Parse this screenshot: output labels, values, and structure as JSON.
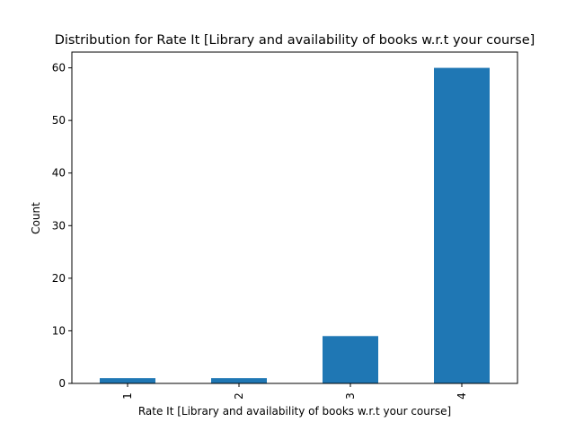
{
  "chart_data": {
    "type": "bar",
    "title": "Distribution for Rate It [Library and availability of books  w.r.t your course]",
    "xlabel": "Rate It [Library and availability of books  w.r.t your course]",
    "ylabel": "Count",
    "categories": [
      "1",
      "2",
      "3",
      "4"
    ],
    "values": [
      1,
      1,
      9,
      60
    ],
    "ylim": [
      0,
      63
    ],
    "yticks": [
      0,
      10,
      20,
      30,
      40,
      50,
      60
    ],
    "bar_color": "#1f77b4",
    "grid": false,
    "legend": "none"
  }
}
